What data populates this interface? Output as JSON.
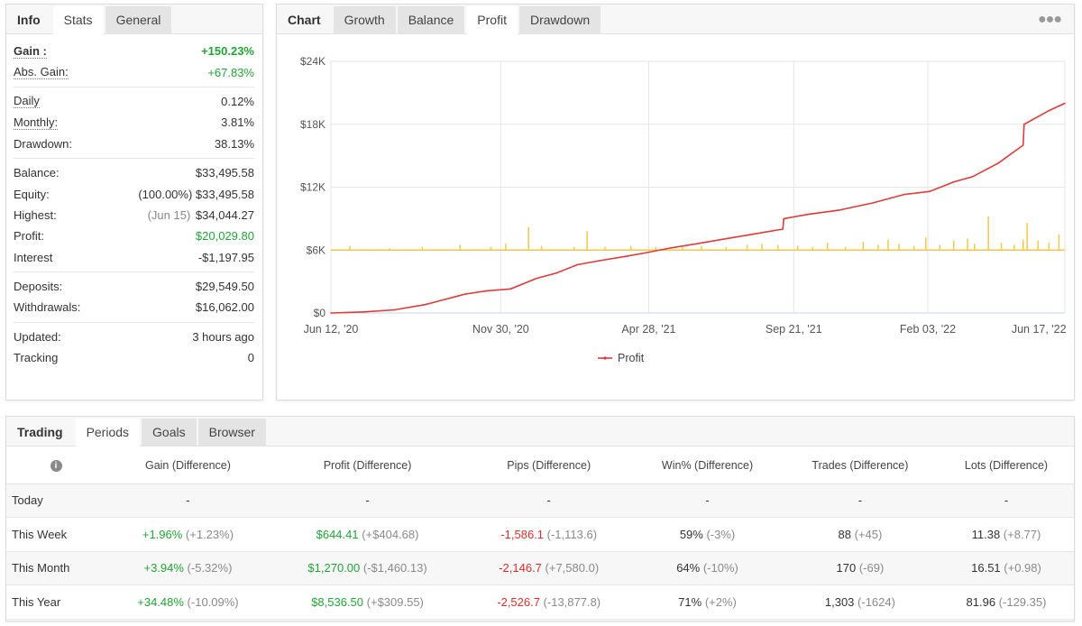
{
  "info_panel": {
    "tabs": [
      "Info",
      "Stats",
      "General"
    ],
    "stats": {
      "gain": {
        "label": "Gain :",
        "value": "+150.23%"
      },
      "abs_gain": {
        "label": "Abs. Gain:",
        "value": "+67.83%"
      },
      "daily": {
        "label": "Daily",
        "value": "0.12%"
      },
      "monthly": {
        "label": "Monthly:",
        "value": "3.81%"
      },
      "drawdown": {
        "label": "Drawdown:",
        "value": "38.13%"
      },
      "balance": {
        "label": "Balance:",
        "value": "$33,495.58"
      },
      "equity": {
        "label": "Equity:",
        "prefix": "(100.00%)",
        "value": "$33,495.58"
      },
      "highest": {
        "label": "Highest:",
        "prefix": "(Jun 15)",
        "value": "$34,044.27"
      },
      "profit": {
        "label": "Profit:",
        "value": "$20,029.80"
      },
      "interest": {
        "label": "Interest",
        "value": "-$1,197.95"
      },
      "deposits": {
        "label": "Deposits:",
        "value": "$29,549.50"
      },
      "withdrawals": {
        "label": "Withdrawals:",
        "value": "$16,062.00"
      },
      "updated": {
        "label": "Updated:",
        "value": "3 hours ago"
      },
      "tracking": {
        "label": "Tracking",
        "value": "0"
      }
    }
  },
  "chart_panel": {
    "tabs": [
      "Chart",
      "Growth",
      "Balance",
      "Profit",
      "Drawdown"
    ],
    "menu_icon": "more-dots-icon",
    "colors": {
      "profit_line": "#e03a3a",
      "volume_bars": "#f2c94c"
    }
  },
  "chart_data": {
    "type": "line",
    "title": "",
    "xlabel": "",
    "ylabel": "",
    "x_ticks": [
      "Jun 12, '20",
      "Nov 30, '20",
      "Apr 28, '21",
      "Sep 21, '21",
      "Feb 03, '22",
      "Jun 17, '22"
    ],
    "y_ticks": [
      "$0",
      "$6K",
      "$12K",
      "$18K",
      "$24K"
    ],
    "ylim": [
      0,
      24000
    ],
    "xlim": [
      "2020-06-12",
      "2022-06-21"
    ],
    "grid": true,
    "legend_position": "bottom",
    "series": [
      {
        "name": "Profit",
        "x": [
          "2020-06-12",
          "2020-07-15",
          "2020-08-15",
          "2020-09-15",
          "2020-10-05",
          "2020-10-25",
          "2020-11-15",
          "2020-12-10",
          "2021-01-05",
          "2021-01-25",
          "2021-02-15",
          "2021-03-10",
          "2021-04-05",
          "2021-04-28",
          "2021-05-20",
          "2021-06-15",
          "2021-07-10",
          "2021-08-10",
          "2021-09-10",
          "2021-09-11",
          "2021-10-05",
          "2021-11-05",
          "2021-12-10",
          "2022-01-10",
          "2022-02-05",
          "2022-03-01",
          "2022-03-20",
          "2022-04-15",
          "2022-05-10",
          "2022-05-11",
          "2022-06-05",
          "2022-06-21"
        ],
        "y": [
          0,
          100,
          300,
          800,
          1300,
          1800,
          2100,
          2300,
          3300,
          3800,
          4600,
          5000,
          5400,
          5800,
          6200,
          6600,
          7000,
          7500,
          8000,
          9000,
          9400,
          9800,
          10500,
          11300,
          11600,
          12500,
          13000,
          14300,
          16000,
          18000,
          19300,
          20000
        ]
      },
      {
        "name": "",
        "type": "bar",
        "x": [
          "2020-07-01",
          "2020-08-10",
          "2020-09-12",
          "2020-10-20",
          "2020-11-20",
          "2020-12-05",
          "2020-12-28",
          "2021-01-10",
          "2021-02-12",
          "2021-02-25",
          "2021-03-15",
          "2021-04-10",
          "2021-05-05",
          "2021-06-01",
          "2021-06-20",
          "2021-07-15",
          "2021-08-05",
          "2021-08-20",
          "2021-09-05",
          "2021-09-25",
          "2021-10-10",
          "2021-10-25",
          "2021-11-12",
          "2021-11-30",
          "2021-12-15",
          "2021-12-25",
          "2022-01-05",
          "2022-01-20",
          "2022-02-01",
          "2022-02-15",
          "2022-03-01",
          "2022-03-15",
          "2022-03-22",
          "2022-04-05",
          "2022-04-18",
          "2022-05-01",
          "2022-05-10",
          "2022-05-14",
          "2022-05-25",
          "2022-06-05",
          "2022-06-15"
        ],
        "y": [
          400,
          200,
          300,
          500,
          300,
          600,
          2200,
          400,
          300,
          1800,
          300,
          400,
          300,
          300,
          400,
          300,
          500,
          600,
          500,
          400,
          300,
          700,
          300,
          800,
          500,
          1000,
          600,
          400,
          1200,
          500,
          900,
          1100,
          600,
          3200,
          700,
          500,
          1000,
          2600,
          900,
          700,
          1500
        ]
      }
    ]
  },
  "trading_panel": {
    "tabs": [
      "Trading",
      "Periods",
      "Goals",
      "Browser"
    ],
    "info_icon": "info-icon",
    "columns": [
      "Gain (Difference)",
      "Profit (Difference)",
      "Pips (Difference)",
      "Win% (Difference)",
      "Trades (Difference)",
      "Lots (Difference)"
    ],
    "rows": [
      {
        "period": "Today",
        "gain": "-",
        "gain_diff": "",
        "profit": "-",
        "profit_diff": "",
        "pips": "-",
        "pips_diff": "",
        "win": "-",
        "win_diff": "",
        "trades": "-",
        "trades_diff": "",
        "lots": "-",
        "lots_diff": ""
      },
      {
        "period": "This Week",
        "gain": "+1.96%",
        "gain_diff": "(+1.23%)",
        "profit": "$644.41",
        "profit_diff": "(+$404.68)",
        "pips": "-1,586.1",
        "pips_diff": "(-1,113.6)",
        "win": "59%",
        "win_diff": "(-3%)",
        "trades": "88",
        "trades_diff": "(+45)",
        "lots": "11.38",
        "lots_diff": "(+8.77)"
      },
      {
        "period": "This Month",
        "gain": "+3.94%",
        "gain_diff": "(-5.32%)",
        "profit": "$1,270.00",
        "profit_diff": "(-$1,460.13)",
        "pips": "-2,146.7",
        "pips_diff": "(+7,580.0)",
        "win": "64%",
        "win_diff": "(-10%)",
        "trades": "170",
        "trades_diff": "(-69)",
        "lots": "16.51",
        "lots_diff": "(+0.98)"
      },
      {
        "period": "This Year",
        "gain": "+34.48%",
        "gain_diff": "(-10.09%)",
        "profit": "$8,536.50",
        "profit_diff": "(+$309.55)",
        "pips": "-2,526.7",
        "pips_diff": "(-13,877.8)",
        "win": "71%",
        "win_diff": "(+2%)",
        "trades": "1,303",
        "trades_diff": "(-1624)",
        "lots": "81.96",
        "lots_diff": "(-129.35)"
      }
    ],
    "colors": {
      "positive": "#21a536",
      "negative": "#e52c2c"
    }
  }
}
